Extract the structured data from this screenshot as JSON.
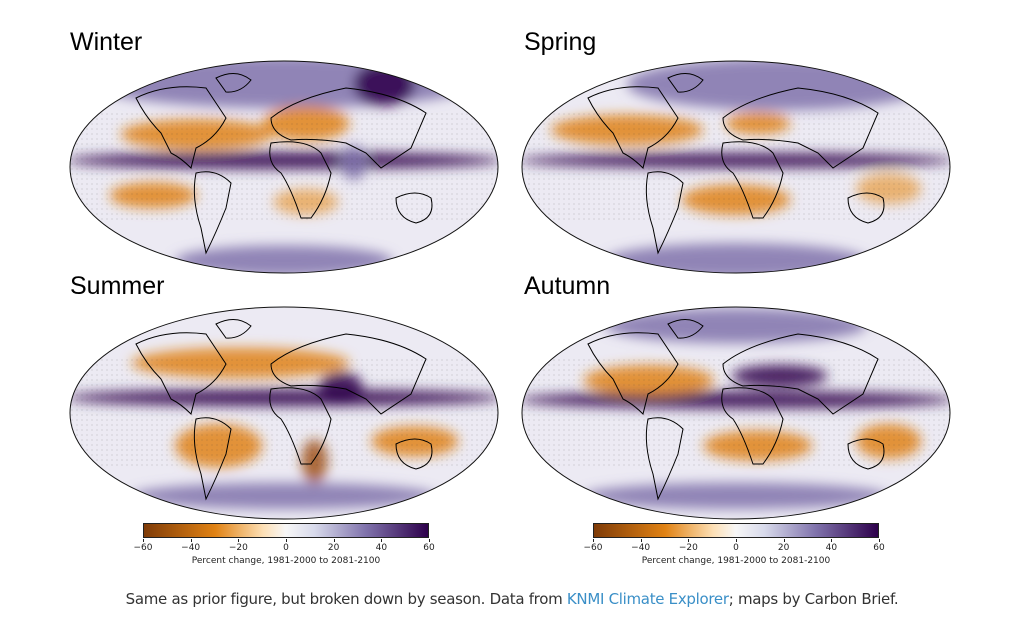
{
  "panels": [
    {
      "title": "Winter",
      "wet_regions": [
        "equatorial Pacific",
        "northern high latitudes",
        "east Africa"
      ],
      "dry_regions": [
        "subtropical Atlantic",
        "Mediterranean",
        "southern subtropics"
      ]
    },
    {
      "title": "Spring",
      "wet_regions": [
        "equatorial Pacific",
        "northern high latitudes",
        "Southern Ocean"
      ],
      "dry_regions": [
        "subtropical Atlantic",
        "Mediterranean",
        "southern Africa"
      ]
    },
    {
      "title": "Summer",
      "wet_regions": [
        "equatorial Pacific",
        "Sahel",
        "Southern Ocean"
      ],
      "dry_regions": [
        "Mediterranean",
        "Central America",
        "southern Africa",
        "Amazon"
      ]
    },
    {
      "title": "Autumn",
      "wet_regions": [
        "equatorial Pacific",
        "Sahara",
        "Arabia",
        "Southern Ocean"
      ],
      "dry_regions": [
        "subtropical Atlantic",
        "southern Africa",
        "Australia"
      ]
    }
  ],
  "colorbar": {
    "ticks": [
      "−60",
      "−40",
      "−20",
      "0",
      "20",
      "40",
      "60"
    ],
    "range": [
      -60,
      60
    ],
    "label": "Percent change, 1981-2000 to 2081-2100",
    "colors": {
      "dry": "#7f3b08",
      "mid_dry": "#e08214",
      "neutral": "#f7f7f7",
      "mid_wet": "#8073ac",
      "wet": "#2d004b"
    }
  },
  "caption": {
    "before": "Same as prior figure, but broken down by season. Data from ",
    "link": "KNMI Climate Explorer",
    "after": "; maps by Carbon Brief."
  }
}
